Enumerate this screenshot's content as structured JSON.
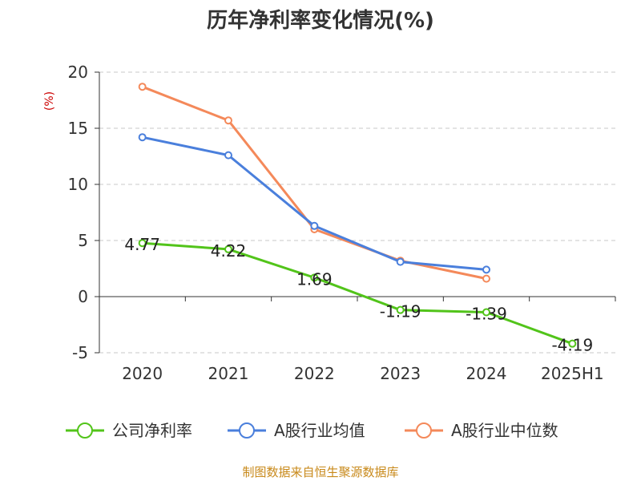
{
  "chart_data": {
    "type": "line",
    "title": "历年净利率变化情况(%)",
    "ylabel": "(%)",
    "categories": [
      "2020",
      "2021",
      "2022",
      "2023",
      "2024",
      "2025H1"
    ],
    "ylim": [
      -5,
      20
    ],
    "yticks": [
      20,
      15,
      10,
      5,
      0,
      -5
    ],
    "grid": true,
    "legend_position": "bottom",
    "series": [
      {
        "name": "公司净利率",
        "color": "#52c41a",
        "values": [
          4.77,
          4.22,
          1.69,
          -1.19,
          -1.39,
          -4.19
        ],
        "labels": [
          "4.77",
          "4.22",
          "1.69",
          "-1.19",
          "-1.39",
          "-4.19"
        ]
      },
      {
        "name": "A股行业均值",
        "color": "#4a7fdc",
        "values": [
          14.2,
          12.6,
          6.3,
          3.1,
          2.4,
          null
        ]
      },
      {
        "name": "A股行业中位数",
        "color": "#f4895a",
        "values": [
          18.7,
          15.7,
          6.0,
          3.2,
          1.6,
          null
        ]
      }
    ],
    "source": "制图数据来自恒生聚源数据库"
  }
}
